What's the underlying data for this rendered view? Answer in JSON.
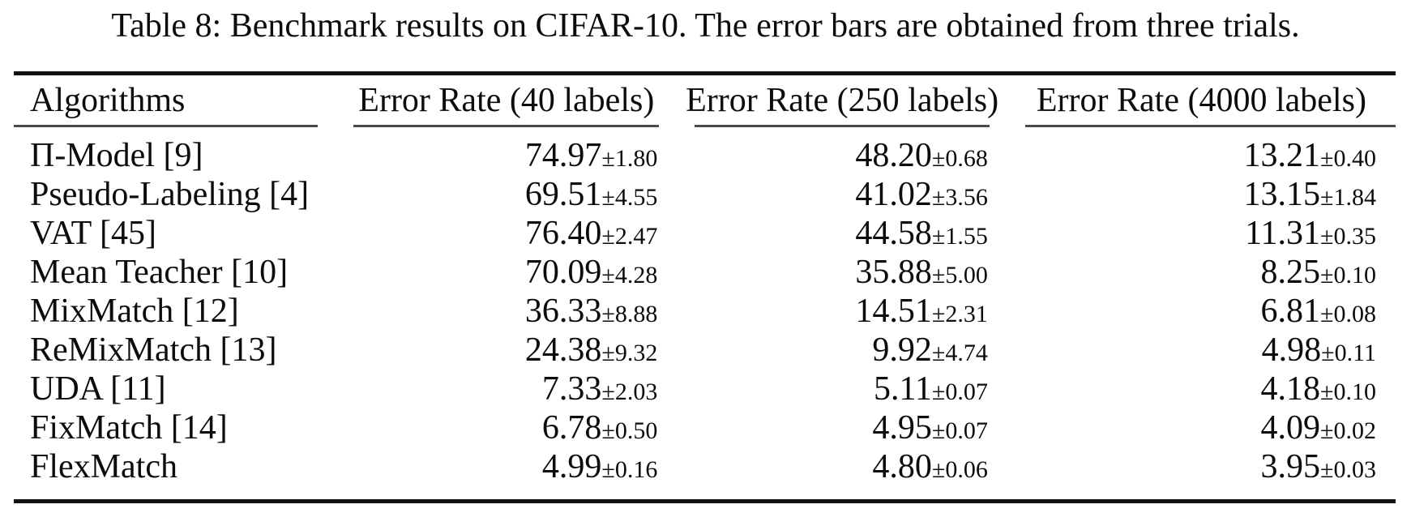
{
  "page": {
    "caption": "Table 8: Benchmark results on CIFAR-10. The error bars are obtained from three trials."
  },
  "table": {
    "headers": [
      "Algorithms",
      "Error Rate (40 labels)",
      "Error Rate (250 labels)",
      "Error Rate (4000 labels)"
    ],
    "rows": [
      {
        "algorithm": "Π-Model [9]",
        "e40": "74.97",
        "e40_err": "±1.80",
        "e250": "48.20",
        "e250_err": "±0.68",
        "e4000": "13.21",
        "e4000_err": "±0.40"
      },
      {
        "algorithm": "Pseudo-Labeling [4]",
        "e40": "69.51",
        "e40_err": "±4.55",
        "e250": "41.02",
        "e250_err": "±3.56",
        "e4000": "13.15",
        "e4000_err": "±1.84"
      },
      {
        "algorithm": "VAT [45]",
        "e40": "76.40",
        "e40_err": "±2.47",
        "e250": "44.58",
        "e250_err": "±1.55",
        "e4000": "11.31",
        "e4000_err": "±0.35"
      },
      {
        "algorithm": "Mean Teacher [10]",
        "e40": "70.09",
        "e40_err": "±4.28",
        "e250": "35.88",
        "e250_err": "±5.00",
        "e4000": "8.25",
        "e4000_err": "±0.10"
      },
      {
        "algorithm": "MixMatch [12]",
        "e40": "36.33",
        "e40_err": "±8.88",
        "e250": "14.51",
        "e250_err": "±2.31",
        "e4000": "6.81",
        "e4000_err": "±0.08"
      },
      {
        "algorithm": "ReMixMatch [13]",
        "e40": "24.38",
        "e40_err": "±9.32",
        "e250": "9.92",
        "e250_err": "±4.74",
        "e4000": "4.98",
        "e4000_err": "±0.11"
      },
      {
        "algorithm": "UDA [11]",
        "e40": "7.33",
        "e40_err": "±2.03",
        "e250": "5.11",
        "e250_err": "±0.07",
        "e4000": "4.18",
        "e4000_err": "±0.10"
      },
      {
        "algorithm": "FixMatch [14]",
        "e40": "6.78",
        "e40_err": "±0.50",
        "e250": "4.95",
        "e250_err": "±0.07",
        "e4000": "4.09",
        "e4000_err": "±0.02"
      },
      {
        "algorithm": "FlexMatch",
        "e40": "4.99",
        "e40_err": "±0.16",
        "e250": "4.80",
        "e250_err": "±0.06",
        "e4000": "3.95",
        "e4000_err": "±0.03"
      }
    ]
  }
}
